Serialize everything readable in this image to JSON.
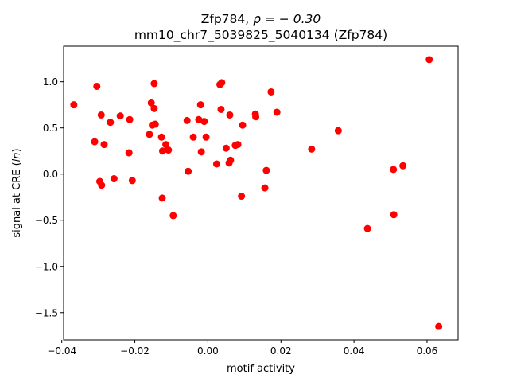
{
  "chart_data": {
    "type": "scatter",
    "title_line1": "Zfp784, ",
    "title_rho": "ρ = − 0.30",
    "title_line2": "mm10_chr7_5039825_5040134 (Zfp784)",
    "xlabel": "motif activity",
    "ylabel_prefix": "signal at CRE (",
    "ylabel_ln": "ln",
    "ylabel_suffix": ")",
    "xlim": [
      -0.0395,
      0.0685
    ],
    "ylim": [
      -1.795,
      1.385
    ],
    "x_ticks": [
      {
        "value": -0.04,
        "label": "−0.04"
      },
      {
        "value": -0.02,
        "label": "−0.02"
      },
      {
        "value": 0.0,
        "label": "0.00"
      },
      {
        "value": 0.02,
        "label": "0.02"
      },
      {
        "value": 0.04,
        "label": "0.04"
      },
      {
        "value": 0.06,
        "label": "0.06"
      }
    ],
    "y_ticks": [
      {
        "value": -1.5,
        "label": "−1.5"
      },
      {
        "value": -1.0,
        "label": "−1.0"
      },
      {
        "value": -0.5,
        "label": "−0.5"
      },
      {
        "value": 0.0,
        "label": "0.0"
      },
      {
        "value": 0.5,
        "label": "0.5"
      },
      {
        "value": 1.0,
        "label": "1.0"
      }
    ],
    "marker_color": "#ff0000",
    "grid": false,
    "points": [
      {
        "x": -0.0367,
        "y": 0.75
      },
      {
        "x": -0.0304,
        "y": 0.95
      },
      {
        "x": -0.0296,
        "y": -0.08
      },
      {
        "x": -0.0292,
        "y": 0.64
      },
      {
        "x": -0.0291,
        "y": -0.12
      },
      {
        "x": -0.0284,
        "y": 0.32
      },
      {
        "x": -0.031,
        "y": 0.35
      },
      {
        "x": -0.0267,
        "y": 0.56
      },
      {
        "x": -0.0257,
        "y": -0.05
      },
      {
        "x": -0.024,
        "y": 0.63
      },
      {
        "x": -0.0216,
        "y": 0.23
      },
      {
        "x": -0.0214,
        "y": 0.59
      },
      {
        "x": -0.0207,
        "y": -0.07
      },
      {
        "x": -0.016,
        "y": 0.43
      },
      {
        "x": -0.0155,
        "y": 0.77
      },
      {
        "x": -0.0152,
        "y": 0.53
      },
      {
        "x": -0.0147,
        "y": 0.98
      },
      {
        "x": -0.0147,
        "y": 0.71
      },
      {
        "x": -0.0144,
        "y": 0.54
      },
      {
        "x": -0.0127,
        "y": 0.4
      },
      {
        "x": -0.0125,
        "y": -0.26
      },
      {
        "x": -0.0124,
        "y": 0.25
      },
      {
        "x": -0.0115,
        "y": 0.32
      },
      {
        "x": -0.0108,
        "y": 0.26
      },
      {
        "x": -0.0095,
        "y": -0.45
      },
      {
        "x": -0.0057,
        "y": 0.58
      },
      {
        "x": -0.0054,
        "y": 0.03
      },
      {
        "x": -0.004,
        "y": 0.4
      },
      {
        "x": -0.0025,
        "y": 0.59
      },
      {
        "x": -0.002,
        "y": 0.75
      },
      {
        "x": -0.0018,
        "y": 0.24
      },
      {
        "x": -0.001,
        "y": 0.57
      },
      {
        "x": -0.0005,
        "y": 0.4
      },
      {
        "x": 0.0024,
        "y": 0.11
      },
      {
        "x": 0.0033,
        "y": 0.97
      },
      {
        "x": 0.0038,
        "y": 0.99
      },
      {
        "x": 0.0036,
        "y": 0.7
      },
      {
        "x": 0.005,
        "y": 0.28
      },
      {
        "x": 0.0058,
        "y": 0.12
      },
      {
        "x": 0.006,
        "y": 0.64
      },
      {
        "x": 0.0062,
        "y": 0.15
      },
      {
        "x": 0.0075,
        "y": 0.31
      },
      {
        "x": 0.0082,
        "y": 0.32
      },
      {
        "x": 0.0092,
        "y": -0.24
      },
      {
        "x": 0.0095,
        "y": 0.53
      },
      {
        "x": 0.013,
        "y": 0.65
      },
      {
        "x": 0.0131,
        "y": 0.62
      },
      {
        "x": 0.0156,
        "y": -0.15
      },
      {
        "x": 0.016,
        "y": 0.04
      },
      {
        "x": 0.0173,
        "y": 0.89
      },
      {
        "x": 0.0189,
        "y": 0.67
      },
      {
        "x": 0.0284,
        "y": 0.27
      },
      {
        "x": 0.0357,
        "y": 0.47
      },
      {
        "x": 0.0437,
        "y": -0.59
      },
      {
        "x": 0.0508,
        "y": 0.05
      },
      {
        "x": 0.0509,
        "y": -0.44
      },
      {
        "x": 0.0534,
        "y": 0.09
      },
      {
        "x": 0.0606,
        "y": 1.24
      },
      {
        "x": 0.0632,
        "y": -1.65
      }
    ]
  }
}
